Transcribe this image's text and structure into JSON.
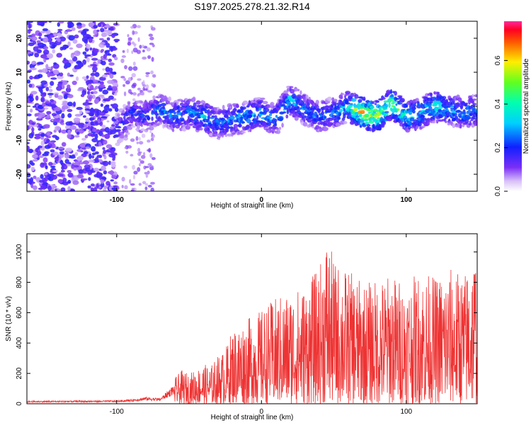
{
  "figure": {
    "title": "S197.2025.278.21.32.R14"
  },
  "chart_data": [
    {
      "type": "heatmap",
      "name": "spectrogram",
      "xlabel": "Height of straight line (km)",
      "ylabel": "Frequency (Hz)",
      "xlim": [
        -162,
        149
      ],
      "ylim": [
        -25,
        25
      ],
      "xticks": [
        -100,
        0,
        100
      ],
      "yticks": [
        -20,
        -10,
        0,
        10,
        20
      ],
      "colorbar": {
        "label": "Normalized spectral amplitude",
        "range": [
          0.0,
          0.78
        ],
        "ticks": [
          0.0,
          0.2,
          0.4,
          0.6
        ]
      },
      "ridge": {
        "description_values": "approximate center frequency (Hz) of dominant signal vs height (km)",
        "x": [
          -100,
          -90,
          -80,
          -70,
          -60,
          -50,
          -40,
          -30,
          -20,
          -10,
          0,
          10,
          20,
          30,
          40,
          50,
          60,
          70,
          80,
          90,
          100,
          110,
          120,
          130,
          140,
          149
        ],
        "y": [
          -7,
          -2,
          -3,
          -1,
          -3,
          -2,
          -3,
          -5,
          -4,
          -3,
          -2,
          -4,
          2,
          -1,
          -3,
          -2,
          0,
          -2,
          -3,
          1,
          -3,
          -2,
          0,
          -1,
          -2,
          -1
        ],
        "peak_amplitude": [
          0.2,
          0.25,
          0.25,
          0.3,
          0.3,
          0.3,
          0.35,
          0.3,
          0.3,
          0.35,
          0.35,
          0.3,
          0.4,
          0.3,
          0.3,
          0.3,
          0.4,
          0.7,
          0.6,
          0.55,
          0.45,
          0.4,
          0.45,
          0.35,
          0.35,
          0.3
        ]
      },
      "noise_region_x": [
        -162,
        -100
      ]
    },
    {
      "type": "line",
      "name": "snr",
      "xlabel": "Height of straight line (km)",
      "ylabel": "SNR (10 * v/v)",
      "xlim": [
        -162,
        149
      ],
      "ylim": [
        0,
        1120
      ],
      "xticks": [
        -100,
        0,
        100
      ],
      "yticks": [
        0,
        200,
        400,
        600,
        800,
        1000
      ],
      "color": "#ee3333",
      "envelope_x": [
        -162,
        -100,
        -90,
        -80,
        -70,
        -62,
        -55,
        -50,
        -45,
        -40,
        -35,
        -30,
        -25,
        -20,
        -10,
        0,
        10,
        20,
        30,
        40,
        45,
        50,
        60,
        70,
        80,
        90,
        100,
        110,
        120,
        130,
        140,
        149
      ],
      "envelope_y": [
        25,
        30,
        40,
        60,
        50,
        150,
        220,
        200,
        230,
        260,
        250,
        320,
        360,
        500,
        560,
        620,
        700,
        750,
        780,
        900,
        1120,
        950,
        880,
        800,
        820,
        860,
        800,
        880,
        840,
        900,
        860,
        1050
      ]
    }
  ]
}
